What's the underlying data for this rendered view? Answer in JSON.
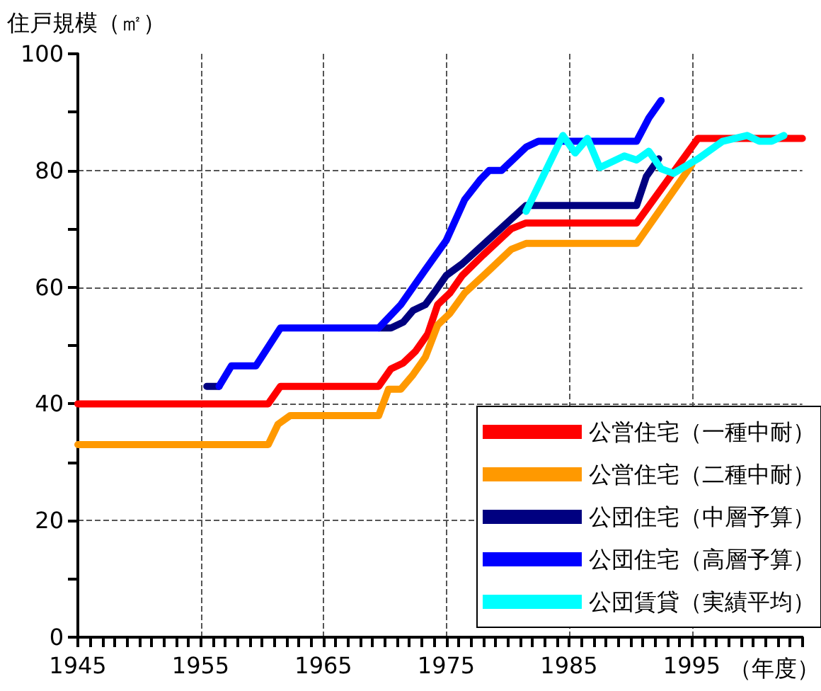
{
  "chart_data": {
    "type": "line",
    "ylabel": "住戸規模（㎡）",
    "xlabel": "（年度）",
    "xlim": [
      1945,
      2004
    ],
    "ylim": [
      0,
      100
    ],
    "xticks": [
      1945,
      {
        "value": 1946,
        "label": null
      },
      {
        "value": 1947,
        "label": null
      },
      {
        "value": 1948,
        "label": null
      },
      {
        "value": 1949,
        "label": null
      },
      {
        "value": 1950,
        "label": null
      },
      {
        "value": 1951,
        "label": null
      },
      {
        "value": 1952,
        "label": null
      },
      {
        "value": 1953,
        "label": null
      },
      {
        "value": 1954,
        "label": null
      },
      1955,
      {
        "value": 1956,
        "label": null
      },
      {
        "value": 1957,
        "label": null
      },
      {
        "value": 1958,
        "label": null
      },
      {
        "value": 1959,
        "label": null
      },
      {
        "value": 1960,
        "label": null
      },
      {
        "value": 1961,
        "label": null
      },
      {
        "value": 1962,
        "label": null
      },
      {
        "value": 1963,
        "label": null
      },
      {
        "value": 1964,
        "label": null
      },
      1965,
      {
        "value": 1966,
        "label": null
      },
      {
        "value": 1967,
        "label": null
      },
      {
        "value": 1968,
        "label": null
      },
      {
        "value": 1969,
        "label": null
      },
      {
        "value": 1970,
        "label": null
      },
      {
        "value": 1971,
        "label": null
      },
      {
        "value": 1972,
        "label": null
      },
      {
        "value": 1973,
        "label": null
      },
      {
        "value": 1974,
        "label": null
      },
      1975,
      {
        "value": 1976,
        "label": null
      },
      {
        "value": 1977,
        "label": null
      },
      {
        "value": 1978,
        "label": null
      },
      {
        "value": 1979,
        "label": null
      },
      {
        "value": 1980,
        "label": null
      },
      {
        "value": 1981,
        "label": null
      },
      {
        "value": 1982,
        "label": null
      },
      {
        "value": 1983,
        "label": null
      },
      {
        "value": 1984,
        "label": null
      },
      1985,
      {
        "value": 1986,
        "label": null
      },
      {
        "value": 1987,
        "label": null
      },
      {
        "value": 1988,
        "label": null
      },
      {
        "value": 1989,
        "label": null
      },
      {
        "value": 1990,
        "label": null
      },
      {
        "value": 1991,
        "label": null
      },
      {
        "value": 1992,
        "label": null
      },
      {
        "value": 1993,
        "label": null
      },
      {
        "value": 1994,
        "label": null
      },
      1995,
      {
        "value": 1996,
        "label": null
      },
      {
        "value": 1997,
        "label": null
      },
      {
        "value": 1998,
        "label": null
      },
      {
        "value": 1999,
        "label": null
      },
      {
        "value": 2000,
        "label": null
      },
      {
        "value": 2001,
        "label": null
      },
      {
        "value": 2002,
        "label": null
      },
      {
        "value": 2003,
        "label": null
      },
      {
        "value": 2004,
        "label": null
      }
    ],
    "yticks": [
      0,
      {
        "value": 10,
        "label": null
      },
      20,
      {
        "value": 30,
        "label": null
      },
      40,
      {
        "value": 50,
        "label": null
      },
      60,
      {
        "value": 70,
        "label": null
      },
      80,
      {
        "value": 90,
        "label": null
      },
      100
    ],
    "grid": true,
    "legend": "bottom right",
    "line_style": "solid",
    "marker": "none",
    "series": [
      {
        "name": "公営住宅（一種中耐）",
        "color": "#ff0000",
        "x": [
          1945,
          1960.5,
          1961.5,
          1969.5,
          1970.5,
          1971.5,
          1972.5,
          1973.5,
          1974.3,
          1975.3,
          1976.3,
          1978,
          1980.3,
          1981.5,
          1990.5,
          1995.5,
          2004
        ],
        "values": [
          40,
          40,
          43,
          43,
          46,
          47,
          49,
          52,
          57,
          59,
          62,
          65.5,
          70,
          71,
          71,
          85.5,
          85.5
        ]
      },
      {
        "name": "公営住宅（二種中耐）",
        "color": "#ff9900",
        "x": [
          1945,
          1960.5,
          1961.3,
          1962.3,
          1969.5,
          1970.3,
          1971.3,
          1972.3,
          1973.3,
          1974.3,
          1975.3,
          1976.5,
          1978.3,
          1980.3,
          1981.5,
          1990.5,
          1995
        ],
        "values": [
          33,
          33,
          36.5,
          38,
          38,
          42.5,
          42.5,
          45,
          48,
          53.5,
          55.5,
          59,
          62.5,
          66.5,
          67.5,
          67.5,
          81
        ]
      },
      {
        "name": "公団住宅（中層予算）",
        "color": "#000080",
        "x": [
          1955.5,
          1956.5,
          1963,
          1969.5,
          1970.5,
          1971.5,
          1972.3,
          1973.3,
          1974,
          1975,
          1976.3,
          1981.5,
          1990.5,
          1991.3,
          1992.3
        ],
        "values": [
          43,
          43,
          null,
          53,
          53,
          54,
          56,
          57,
          59,
          62,
          64,
          74,
          74,
          79,
          82
        ]
      },
      {
        "name": "公団住宅（高層予算）",
        "color": "#0000ff",
        "x": [
          1956.5,
          1957.5,
          1959.5,
          1961.5,
          1969.5,
          1971.3,
          1973.3,
          1975,
          1976.5,
          1977.8,
          1978.5,
          1979.5,
          1981.5,
          1982.5,
          1990.5,
          1991.5,
          1992.5
        ],
        "values": [
          43,
          46.5,
          46.5,
          53,
          53,
          57,
          63,
          68,
          75,
          78.5,
          80,
          80,
          84,
          85,
          85,
          89,
          92
        ]
      },
      {
        "name": "公団賃貸（実績平均）",
        "color": "#00ffff",
        "x": [
          1981.5,
          1984.5,
          1985.5,
          1986.5,
          1987.5,
          1989.5,
          1990.5,
          1991.5,
          1992.5,
          1993.5,
          1995.5,
          1997.5,
          1999.5,
          2000.5,
          2001.5,
          2002.5
        ],
        "values": [
          73,
          86,
          83,
          85.5,
          80.5,
          82.5,
          81.8,
          83.3,
          80.3,
          79.5,
          82,
          85,
          86,
          85,
          85,
          86
        ]
      }
    ]
  }
}
